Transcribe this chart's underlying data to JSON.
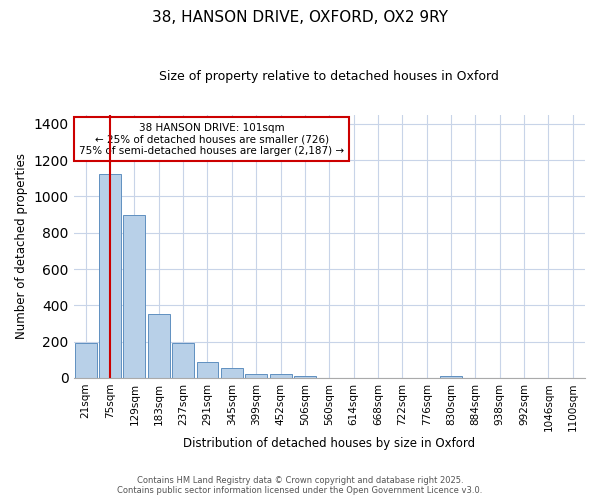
{
  "title": "38, HANSON DRIVE, OXFORD, OX2 9RY",
  "subtitle": "Size of property relative to detached houses in Oxford",
  "xlabel": "Distribution of detached houses by size in Oxford",
  "ylabel": "Number of detached properties",
  "bin_labels": [
    "21sqm",
    "75sqm",
    "129sqm",
    "183sqm",
    "237sqm",
    "291sqm",
    "345sqm",
    "399sqm",
    "452sqm",
    "506sqm",
    "560sqm",
    "614sqm",
    "668sqm",
    "722sqm",
    "776sqm",
    "830sqm",
    "884sqm",
    "938sqm",
    "992sqm",
    "1046sqm",
    "1100sqm"
  ],
  "bar_values": [
    195,
    1125,
    895,
    350,
    195,
    90,
    55,
    20,
    20,
    12,
    0,
    0,
    0,
    0,
    0,
    12,
    0,
    0,
    0,
    0,
    0
  ],
  "bar_color": "#b8d0e8",
  "bar_edge_color": "#6090c0",
  "bg_color": "#ffffff",
  "grid_color": "#c8d4e8",
  "annotation_title": "38 HANSON DRIVE: 101sqm",
  "annotation_line1": "← 25% of detached houses are smaller (726)",
  "annotation_line2": "75% of semi-detached houses are larger (2,187) →",
  "annotation_box_color": "#ffffff",
  "annotation_border_color": "#cc0000",
  "red_line_color": "#cc0000",
  "ylim": [
    0,
    1450
  ],
  "yticks": [
    0,
    200,
    400,
    600,
    800,
    1000,
    1200,
    1400
  ],
  "footer1": "Contains HM Land Registry data © Crown copyright and database right 2025.",
  "footer2": "Contains public sector information licensed under the Open Government Licence v3.0."
}
